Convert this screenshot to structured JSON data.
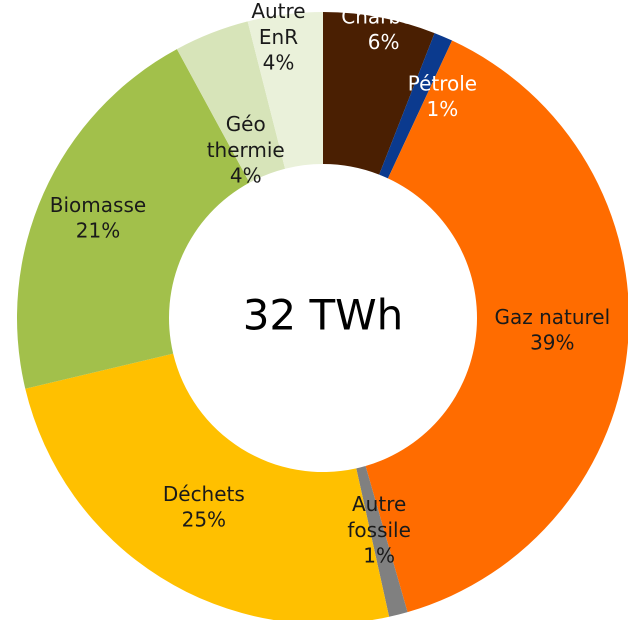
{
  "chart_data": {
    "type": "donut",
    "center_label": "32 TWh",
    "categories": [
      "Charbon",
      "Pétrole",
      "Gaz naturel",
      "Autre\nfossile",
      "Déchets",
      "Biomasse",
      "Géo\nthermie",
      "Autre\nEnR"
    ],
    "values": [
      6,
      1,
      39,
      1,
      25,
      21,
      4,
      4
    ],
    "value_labels": [
      "6%",
      "1%",
      "39%",
      "1%",
      "25%",
      "21%",
      "4%",
      "4%"
    ],
    "colors": [
      "#4a1f02",
      "#0b3a8e",
      "#ff6c00",
      "#808080",
      "#ffc000",
      "#a2c04b",
      "#d7e4b9",
      "#eaf1da"
    ],
    "label_colors": [
      "#ffffff",
      "#ffffff",
      "#1a1a1a",
      "#1a1a1a",
      "#1a1a1a",
      "#1a1a1a",
      "#1a1a1a",
      "#1a1a1a"
    ]
  }
}
